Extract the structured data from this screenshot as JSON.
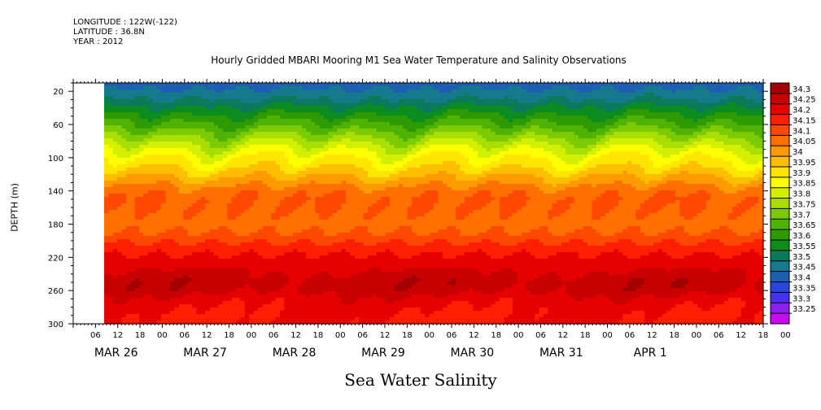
{
  "header": {
    "longitude": "LONGITUDE : 122W(-122)",
    "latitude": "LATITUDE : 36.8N",
    "year": "YEAR : 2012"
  },
  "chart_data": {
    "type": "heatmap",
    "title": "Hourly Gridded MBARI Mooring M1 Sea Water Temperature and Salinity Observations",
    "xlabel": "Sea Water Salinity",
    "ylabel": "DEPTH (m)",
    "y_axis": {
      "range": [
        300,
        10
      ],
      "inverted": true,
      "tick_values": [
        20,
        60,
        100,
        140,
        180,
        220,
        260,
        300
      ]
    },
    "x_axis": {
      "hour_tick_labels": [
        "06",
        "12",
        "18",
        "00",
        "06",
        "12",
        "18",
        "00",
        "06",
        "12",
        "18",
        "00",
        "06",
        "12",
        "18",
        "00",
        "06",
        "12",
        "18",
        "00",
        "06",
        "12",
        "18",
        "00",
        "06",
        "12",
        "18",
        "00",
        "06",
        "12",
        "18",
        "00"
      ],
      "day_labels": [
        "MAR 26",
        "MAR 27",
        "MAR 28",
        "MAR 29",
        "MAR 30",
        "MAR 31",
        "APR  1"
      ],
      "data_start_hour_offset": 7,
      "total_hours": 186
    },
    "colorbar": {
      "levels": [
        34.3,
        34.25,
        34.2,
        34.15,
        34.1,
        34.05,
        34,
        33.95,
        33.9,
        33.85,
        33.8,
        33.75,
        33.7,
        33.65,
        33.6,
        33.55,
        33.5,
        33.45,
        33.4,
        33.35,
        33.3,
        33.25
      ],
      "colors": [
        "#a00000",
        "#c80000",
        "#e60000",
        "#ff1e00",
        "#ff4800",
        "#ff7000",
        "#ff9a00",
        "#ffbe00",
        "#ffe600",
        "#ffff00",
        "#d2f000",
        "#aade00",
        "#7cca00",
        "#4fb200",
        "#2e9a00",
        "#0a8c1e",
        "#0a7a5a",
        "#157a8c",
        "#1e5fb4",
        "#2846dc",
        "#4632f0",
        "#8c1ef0",
        "#c80af0"
      ]
    },
    "salinity_profile": {
      "depths": [
        10,
        20,
        30,
        40,
        50,
        60,
        70,
        80,
        90,
        100,
        110,
        120,
        130,
        140,
        150,
        160,
        170,
        180,
        190,
        200,
        210,
        220,
        230,
        240,
        250,
        260,
        270,
        280,
        290,
        300
      ],
      "values": [
        33.42,
        33.46,
        33.5,
        33.56,
        33.61,
        33.66,
        33.72,
        33.78,
        33.84,
        33.89,
        33.93,
        33.98,
        34.03,
        34.08,
        34.1,
        34.1,
        34.09,
        34.08,
        34.1,
        34.14,
        34.18,
        34.21,
        34.23,
        34.26,
        34.28,
        34.27,
        34.23,
        34.21,
        34.2,
        34.2
      ]
    }
  }
}
